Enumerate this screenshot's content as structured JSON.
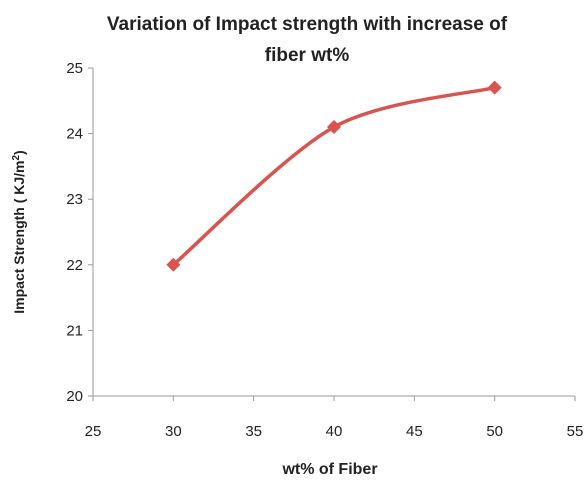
{
  "chart_data": {
    "type": "line",
    "title_lines": [
      "Variation of Impact strength with increase of",
      "fiber wt%"
    ],
    "xlabel": "wt% of Fiber",
    "ylabel_main": "Impact Strength ( KJ/m",
    "ylabel_sup": "2",
    "ylabel_tail": ")",
    "xlim": [
      25,
      55
    ],
    "ylim": [
      20,
      25
    ],
    "x_ticks": [
      25,
      30,
      35,
      40,
      45,
      50,
      55
    ],
    "y_ticks": [
      20,
      21,
      22,
      23,
      24,
      25
    ],
    "x_tick_labels": [
      "25",
      "30",
      "35",
      "40",
      "45",
      "50",
      "55"
    ],
    "y_tick_labels": [
      "20",
      "21",
      "22",
      "23",
      "24",
      "25"
    ],
    "grid": false,
    "smooth": true,
    "series": [
      {
        "x": [
          30,
          40,
          50
        ],
        "y": [
          22.0,
          24.1,
          24.7
        ],
        "color": "#d9534f",
        "marker": "diamond"
      }
    ]
  }
}
